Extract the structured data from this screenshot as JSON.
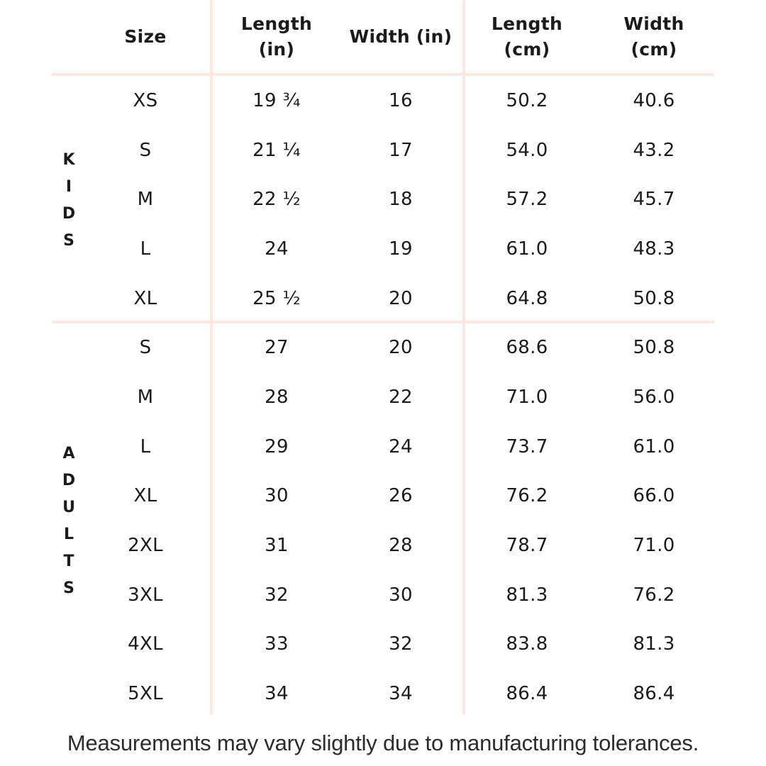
{
  "colors": {
    "divider": "#fbe9df",
    "text": "#1b1b1b",
    "footer_text": "#2c2c2c",
    "background": "#ffffff"
  },
  "table": {
    "headers": [
      "Size",
      "Length\n(in)",
      "Width (in)",
      "Length\n(cm)",
      "Width\n(cm)"
    ],
    "sections": [
      {
        "label": "KIDS",
        "rows": [
          {
            "size": "XS",
            "length_in": "19 ¾",
            "width_in": "16",
            "length_cm": "50.2",
            "width_cm": "40.6"
          },
          {
            "size": "S",
            "length_in": "21 ¼",
            "width_in": "17",
            "length_cm": "54.0",
            "width_cm": "43.2"
          },
          {
            "size": "M",
            "length_in": "22 ½",
            "width_in": "18",
            "length_cm": "57.2",
            "width_cm": "45.7"
          },
          {
            "size": "L",
            "length_in": "24",
            "width_in": "19",
            "length_cm": "61.0",
            "width_cm": "48.3"
          },
          {
            "size": "XL",
            "length_in": "25 ½",
            "width_in": "20",
            "length_cm": "64.8",
            "width_cm": "50.8"
          }
        ]
      },
      {
        "label": "ADULTS",
        "rows": [
          {
            "size": "S",
            "length_in": "27",
            "width_in": "20",
            "length_cm": "68.6",
            "width_cm": "50.8"
          },
          {
            "size": "M",
            "length_in": "28",
            "width_in": "22",
            "length_cm": "71.0",
            "width_cm": "56.0"
          },
          {
            "size": "L",
            "length_in": "29",
            "width_in": "24",
            "length_cm": "73.7",
            "width_cm": "61.0"
          },
          {
            "size": "XL",
            "length_in": "30",
            "width_in": "26",
            "length_cm": "76.2",
            "width_cm": "66.0"
          },
          {
            "size": "2XL",
            "length_in": "31",
            "width_in": "28",
            "length_cm": "78.7",
            "width_cm": "71.0"
          },
          {
            "size": "3XL",
            "length_in": "32",
            "width_in": "30",
            "length_cm": "81.3",
            "width_cm": "76.2"
          },
          {
            "size": "4XL",
            "length_in": "33",
            "width_in": "32",
            "length_cm": "83.8",
            "width_cm": "81.3"
          },
          {
            "size": "5XL",
            "length_in": "34",
            "width_in": "34",
            "length_cm": "86.4",
            "width_cm": "86.4"
          }
        ]
      }
    ]
  },
  "footer": "Measurements may vary slightly due to manufacturing tolerances."
}
